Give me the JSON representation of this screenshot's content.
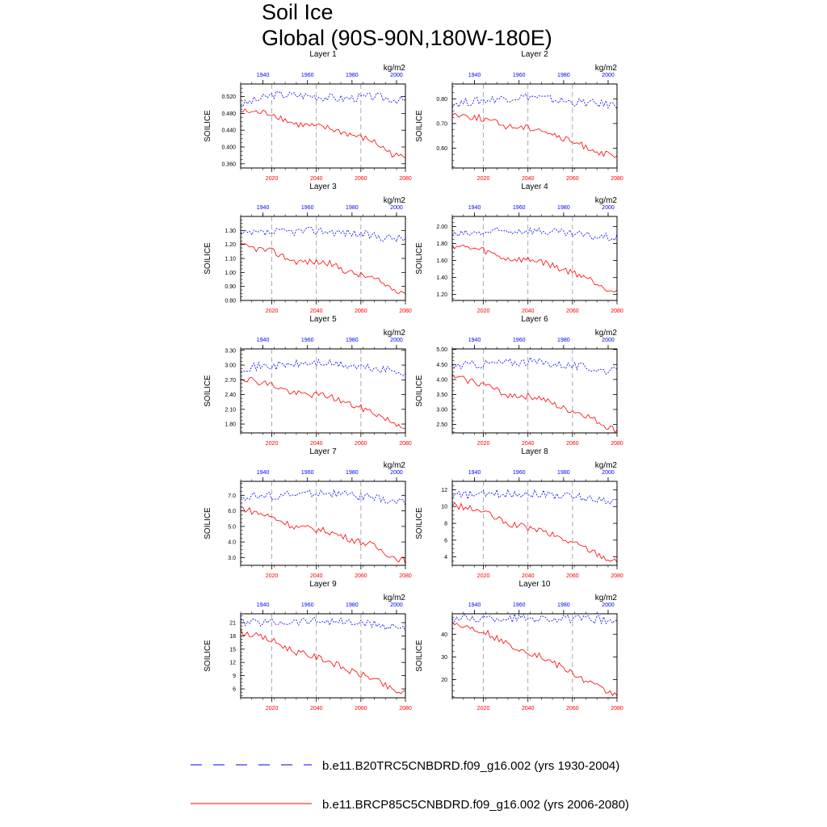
{
  "title": "Soil Ice",
  "subtitle": "Global (90S-90N,180W-180E)",
  "units": "kg/m2",
  "ylabel": "SOILICE",
  "colors": {
    "hist": "#0000ff",
    "proj": "#ff0000",
    "grid": "#888888"
  },
  "legend": [
    {
      "name": "b.e11.B20TRC5CNBDRD.f09_g16.002 (yrs 1930-2004)",
      "style": "dashed",
      "color": "#0000ff"
    },
    {
      "name": "b.e11.BRCP85C5CNBDRD.f09_g16.002 (yrs 2006-2080)",
      "style": "solid",
      "color": "#ff0000"
    }
  ],
  "chart_data": [
    {
      "type": "line",
      "title": "Layer 1",
      "ylim": [
        0.35,
        0.55
      ],
      "yticks": [
        0.36,
        0.4,
        0.44,
        0.48,
        0.52
      ],
      "ytick_labels": [
        "0.360",
        "0.400",
        "0.440",
        "0.480",
        "0.520"
      ],
      "x_top": [
        1930,
        2004
      ],
      "x_top_ticks": [
        1940,
        1960,
        1980,
        2000
      ],
      "x_bottom": [
        2006,
        2080
      ],
      "x_bottom_ticks": [
        2020,
        2040,
        2060,
        2080
      ],
      "series": [
        {
          "key": "hist",
          "anchors": [
            [
              1930,
              0.5
            ],
            [
              1945,
              0.525
            ],
            [
              1962,
              0.522
            ],
            [
              1975,
              0.515
            ],
            [
              1990,
              0.52
            ],
            [
              2004,
              0.51
            ]
          ]
        },
        {
          "key": "proj",
          "anchors": [
            [
              2006,
              0.485
            ],
            [
              2020,
              0.48
            ],
            [
              2030,
              0.455
            ],
            [
              2045,
              0.445
            ],
            [
              2055,
              0.43
            ],
            [
              2065,
              0.415
            ],
            [
              2075,
              0.38
            ],
            [
              2080,
              0.375
            ]
          ]
        }
      ]
    },
    {
      "type": "line",
      "title": "Layer 2",
      "ylim": [
        0.52,
        0.86
      ],
      "yticks": [
        0.6,
        0.7,
        0.8
      ],
      "ytick_labels": [
        "0.60",
        "0.70",
        "0.80"
      ],
      "x_top": [
        1930,
        2004
      ],
      "x_top_ticks": [
        1940,
        1960,
        1980,
        2000
      ],
      "x_bottom": [
        2006,
        2080
      ],
      "x_bottom_ticks": [
        2020,
        2040,
        2060,
        2080
      ],
      "series": [
        {
          "key": "hist",
          "anchors": [
            [
              1930,
              0.78
            ],
            [
              1950,
              0.8
            ],
            [
              1965,
              0.81
            ],
            [
              1980,
              0.79
            ],
            [
              1995,
              0.78
            ],
            [
              2004,
              0.775
            ]
          ]
        },
        {
          "key": "proj",
          "anchors": [
            [
              2006,
              0.74
            ],
            [
              2020,
              0.72
            ],
            [
              2030,
              0.69
            ],
            [
              2045,
              0.68
            ],
            [
              2055,
              0.64
            ],
            [
              2065,
              0.61
            ],
            [
              2075,
              0.575
            ],
            [
              2080,
              0.56
            ]
          ]
        }
      ]
    },
    {
      "type": "line",
      "title": "Layer 3",
      "ylim": [
        0.8,
        1.4
      ],
      "yticks": [
        0.8,
        0.9,
        1.0,
        1.1,
        1.2,
        1.3
      ],
      "ytick_labels": [
        "0.80",
        "0.90",
        "1.00",
        "1.10",
        "1.20",
        "1.30"
      ],
      "x_top": [
        1930,
        2004
      ],
      "x_top_ticks": [
        1940,
        1960,
        1980,
        2000
      ],
      "x_bottom": [
        2006,
        2080
      ],
      "x_bottom_ticks": [
        2020,
        2040,
        2060,
        2080
      ],
      "series": [
        {
          "key": "hist",
          "anchors": [
            [
              1930,
              1.27
            ],
            [
              1950,
              1.29
            ],
            [
              1965,
              1.3
            ],
            [
              1980,
              1.28
            ],
            [
              1995,
              1.25
            ],
            [
              2004,
              1.24
            ]
          ]
        },
        {
          "key": "proj",
          "anchors": [
            [
              2006,
              1.19
            ],
            [
              2020,
              1.15
            ],
            [
              2030,
              1.08
            ],
            [
              2045,
              1.07
            ],
            [
              2055,
              1.0
            ],
            [
              2065,
              0.96
            ],
            [
              2075,
              0.88
            ],
            [
              2080,
              0.86
            ]
          ]
        }
      ]
    },
    {
      "type": "line",
      "title": "Layer 4",
      "ylim": [
        1.13,
        2.12
      ],
      "yticks": [
        1.2,
        1.4,
        1.6,
        1.8,
        2.0
      ],
      "ytick_labels": [
        "1.20",
        "1.40",
        "1.60",
        "1.80",
        "2.00"
      ],
      "x_top": [
        1930,
        2004
      ],
      "x_top_ticks": [
        1940,
        1960,
        1980,
        2000
      ],
      "x_bottom": [
        2006,
        2080
      ],
      "x_bottom_ticks": [
        2020,
        2040,
        2060,
        2080
      ],
      "series": [
        {
          "key": "hist",
          "anchors": [
            [
              1930,
              1.9
            ],
            [
              1950,
              1.94
            ],
            [
              1965,
              1.96
            ],
            [
              1980,
              1.92
            ],
            [
              1995,
              1.88
            ],
            [
              2004,
              1.87
            ]
          ]
        },
        {
          "key": "proj",
          "anchors": [
            [
              2006,
              1.78
            ],
            [
              2020,
              1.72
            ],
            [
              2030,
              1.62
            ],
            [
              2045,
              1.6
            ],
            [
              2055,
              1.5
            ],
            [
              2065,
              1.42
            ],
            [
              2075,
              1.28
            ],
            [
              2080,
              1.24
            ]
          ]
        }
      ]
    },
    {
      "type": "line",
      "title": "Layer 5",
      "ylim": [
        1.62,
        3.33
      ],
      "yticks": [
        1.8,
        2.1,
        2.4,
        2.7,
        3.0,
        3.3
      ],
      "ytick_labels": [
        "1.80",
        "2.10",
        "2.40",
        "2.70",
        "3.00",
        "3.30"
      ],
      "x_top": [
        1930,
        2004
      ],
      "x_top_ticks": [
        1940,
        1960,
        1980,
        2000
      ],
      "x_bottom": [
        2006,
        2080
      ],
      "x_bottom_ticks": [
        2020,
        2040,
        2060,
        2080
      ],
      "series": [
        {
          "key": "hist",
          "anchors": [
            [
              1930,
              2.95
            ],
            [
              1950,
              3.0
            ],
            [
              1965,
              3.05
            ],
            [
              1980,
              2.98
            ],
            [
              1995,
              2.9
            ],
            [
              2004,
              2.85
            ]
          ]
        },
        {
          "key": "proj",
          "anchors": [
            [
              2006,
              2.75
            ],
            [
              2020,
              2.6
            ],
            [
              2030,
              2.42
            ],
            [
              2045,
              2.38
            ],
            [
              2055,
              2.2
            ],
            [
              2065,
              2.05
            ],
            [
              2075,
              1.82
            ],
            [
              2080,
              1.75
            ]
          ]
        }
      ]
    },
    {
      "type": "line",
      "title": "Layer 6",
      "ylim": [
        2.22,
        5.02
      ],
      "yticks": [
        2.5,
        3.0,
        3.5,
        4.0,
        4.5,
        5.0
      ],
      "ytick_labels": [
        "2.50",
        "3.00",
        "3.50",
        "4.00",
        "4.50",
        "5.00"
      ],
      "x_top": [
        1930,
        2004
      ],
      "x_top_ticks": [
        1940,
        1960,
        1980,
        2000
      ],
      "x_bottom": [
        2006,
        2080
      ],
      "x_bottom_ticks": [
        2020,
        2040,
        2060,
        2080
      ],
      "series": [
        {
          "key": "hist",
          "anchors": [
            [
              1930,
              4.45
            ],
            [
              1950,
              4.55
            ],
            [
              1965,
              4.6
            ],
            [
              1980,
              4.5
            ],
            [
              1995,
              4.35
            ],
            [
              2004,
              4.25
            ]
          ]
        },
        {
          "key": "proj",
          "anchors": [
            [
              2006,
              4.1
            ],
            [
              2020,
              3.85
            ],
            [
              2030,
              3.5
            ],
            [
              2045,
              3.4
            ],
            [
              2055,
              3.05
            ],
            [
              2065,
              2.85
            ],
            [
              2075,
              2.45
            ],
            [
              2080,
              2.3
            ]
          ]
        }
      ]
    },
    {
      "type": "line",
      "title": "Layer 7",
      "ylim": [
        2.5,
        7.9
      ],
      "yticks": [
        3.0,
        4.0,
        5.0,
        6.0,
        7.0
      ],
      "ytick_labels": [
        "3.0",
        "4.0",
        "5.0",
        "6.0",
        "7.0"
      ],
      "x_top": [
        1930,
        2004
      ],
      "x_top_ticks": [
        1940,
        1960,
        1980,
        2000
      ],
      "x_bottom": [
        2006,
        2080
      ],
      "x_bottom_ticks": [
        2020,
        2040,
        2060,
        2080
      ],
      "series": [
        {
          "key": "hist",
          "anchors": [
            [
              1930,
              6.9
            ],
            [
              1950,
              7.0
            ],
            [
              1965,
              7.2
            ],
            [
              1980,
              7.0
            ],
            [
              1995,
              6.7
            ],
            [
              2004,
              6.5
            ]
          ]
        },
        {
          "key": "proj",
          "anchors": [
            [
              2006,
              6.2
            ],
            [
              2020,
              5.6
            ],
            [
              2030,
              5.0
            ],
            [
              2045,
              4.7
            ],
            [
              2055,
              4.2
            ],
            [
              2065,
              3.8
            ],
            [
              2075,
              3.0
            ],
            [
              2080,
              2.8
            ]
          ]
        }
      ]
    },
    {
      "type": "line",
      "title": "Layer 8",
      "ylim": [
        3,
        13
      ],
      "yticks": [
        4,
        6,
        8,
        10,
        12
      ],
      "ytick_labels": [
        "4",
        "6",
        "8",
        "10",
        "12"
      ],
      "x_top": [
        1930,
        2004
      ],
      "x_top_ticks": [
        1940,
        1960,
        1980,
        2000
      ],
      "x_bottom": [
        2006,
        2080
      ],
      "x_bottom_ticks": [
        2020,
        2040,
        2060,
        2080
      ],
      "series": [
        {
          "key": "hist",
          "anchors": [
            [
              1930,
              11.3
            ],
            [
              1950,
              11.5
            ],
            [
              1965,
              11.6
            ],
            [
              1980,
              11.3
            ],
            [
              1995,
              10.9
            ],
            [
              2004,
              10.6
            ]
          ]
        },
        {
          "key": "proj",
          "anchors": [
            [
              2006,
              10.2
            ],
            [
              2020,
              9.4
            ],
            [
              2030,
              8.0
            ],
            [
              2045,
              7.2
            ],
            [
              2055,
              6.2
            ],
            [
              2065,
              5.2
            ],
            [
              2075,
              3.9
            ],
            [
              2080,
              3.4
            ]
          ]
        }
      ]
    },
    {
      "type": "line",
      "title": "Layer 9",
      "ylim": [
        4,
        23
      ],
      "yticks": [
        6,
        9,
        12,
        15,
        18,
        21
      ],
      "ytick_labels": [
        "6",
        "9",
        "12",
        "15",
        "18",
        "21"
      ],
      "x_top": [
        1930,
        2004
      ],
      "x_top_ticks": [
        1940,
        1960,
        1980,
        2000
      ],
      "x_bottom": [
        2006,
        2080
      ],
      "x_bottom_ticks": [
        2020,
        2040,
        2060,
        2080
      ],
      "series": [
        {
          "key": "hist",
          "anchors": [
            [
              1930,
              21.0
            ],
            [
              1950,
              21.2
            ],
            [
              1965,
              21.5
            ],
            [
              1980,
              21.0
            ],
            [
              1995,
              20.3
            ],
            [
              2004,
              19.8
            ]
          ]
        },
        {
          "key": "proj",
          "anchors": [
            [
              2006,
              19.0
            ],
            [
              2020,
              17.0
            ],
            [
              2030,
              14.5
            ],
            [
              2045,
              12.5
            ],
            [
              2055,
              10.0
            ],
            [
              2065,
              8.5
            ],
            [
              2075,
              5.5
            ],
            [
              2080,
              5.0
            ]
          ]
        }
      ]
    },
    {
      "type": "line",
      "title": "Layer 10",
      "ylim": [
        12,
        49
      ],
      "yticks": [
        20,
        30,
        40
      ],
      "ytick_labels": [
        "20",
        "30",
        "40"
      ],
      "x_top": [
        1930,
        2004
      ],
      "x_top_ticks": [
        1940,
        1960,
        1980,
        2000
      ],
      "x_bottom": [
        2006,
        2080
      ],
      "x_bottom_ticks": [
        2020,
        2040,
        2060,
        2080
      ],
      "series": [
        {
          "key": "hist",
          "anchors": [
            [
              1930,
              47.0
            ],
            [
              1950,
              47.0
            ],
            [
              1965,
              47.3
            ],
            [
              1980,
              46.8
            ],
            [
              1995,
              46.3
            ],
            [
              2004,
              45.8
            ]
          ]
        },
        {
          "key": "proj",
          "anchors": [
            [
              2006,
              45.0
            ],
            [
              2020,
              41.5
            ],
            [
              2030,
              36.0
            ],
            [
              2045,
              30.5
            ],
            [
              2055,
              25.5
            ],
            [
              2065,
              20.0
            ],
            [
              2075,
              15.0
            ],
            [
              2080,
              13.5
            ]
          ]
        }
      ]
    }
  ]
}
